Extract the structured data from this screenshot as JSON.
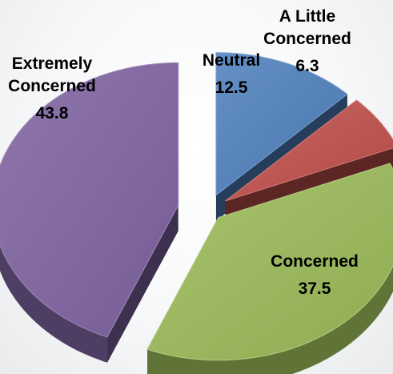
{
  "chart_data": {
    "type": "pie",
    "title": "",
    "exploded": true,
    "three_d": true,
    "slices": [
      {
        "label_lines": [
          "Neutral"
        ],
        "value": 12.5,
        "color": "#4f81bd"
      },
      {
        "label_lines": [
          "A Little",
          "Concerned"
        ],
        "value": 6.3,
        "color": "#c0504d"
      },
      {
        "label_lines": [
          "Concerned"
        ],
        "value": 37.5,
        "color": "#9bbb59"
      },
      {
        "label_lines": [
          "Extremely",
          "Concerned"
        ],
        "value": 43.8,
        "color": "#8064a2"
      }
    ]
  }
}
